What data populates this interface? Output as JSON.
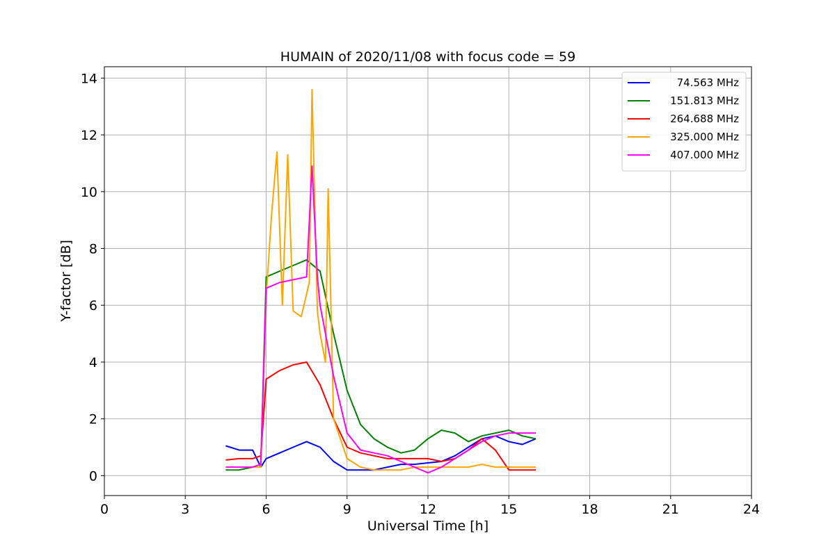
{
  "chart_data": {
    "type": "line",
    "title": "HUMAIN of 2020/11/08 with focus code = 59",
    "xlabel": "Universal Time [h]",
    "ylabel": "Y-factor [dB]",
    "xlim": [
      0,
      24
    ],
    "ylim": [
      -0.7,
      14.4
    ],
    "xticks": [
      0,
      3,
      6,
      9,
      12,
      15,
      18,
      21,
      24
    ],
    "yticks": [
      0,
      2,
      4,
      6,
      8,
      10,
      12,
      14
    ],
    "xtick_labels": [
      "0",
      "3",
      "6",
      "9",
      "12",
      "15",
      "18",
      "21",
      "24"
    ],
    "ytick_labels": [
      "0",
      "2",
      "4",
      "6",
      "8",
      "10",
      "12",
      "14"
    ],
    "grid": true,
    "legend_position": "top-right",
    "series": [
      {
        "name": "74.563 MHz",
        "color": "#0000ff",
        "x": [
          4.5,
          5.0,
          5.5,
          5.8,
          6.0,
          6.5,
          7.0,
          7.5,
          8.0,
          8.5,
          9.0,
          9.5,
          10.0,
          10.5,
          11.0,
          11.5,
          12.0,
          12.5,
          13.0,
          13.5,
          14.0,
          14.5,
          15.0,
          15.5,
          16.0
        ],
        "y": [
          1.05,
          0.9,
          0.9,
          0.3,
          0.6,
          0.8,
          1.0,
          1.2,
          1.0,
          0.5,
          0.2,
          0.2,
          0.2,
          0.3,
          0.4,
          0.4,
          0.45,
          0.5,
          0.7,
          1.0,
          1.3,
          1.4,
          1.2,
          1.1,
          1.3
        ]
      },
      {
        "name": "151.813 MHz",
        "color": "#008000",
        "x": [
          4.5,
          5.0,
          5.5,
          5.8,
          6.0,
          6.5,
          7.0,
          7.5,
          8.0,
          8.5,
          9.0,
          9.5,
          10.0,
          10.5,
          11.0,
          11.5,
          12.0,
          12.5,
          13.0,
          13.5,
          14.0,
          14.5,
          15.0,
          15.5,
          16.0
        ],
        "y": [
          0.2,
          0.2,
          0.3,
          0.4,
          7.0,
          7.2,
          7.4,
          7.6,
          7.2,
          5.0,
          3.0,
          1.8,
          1.3,
          1.0,
          0.8,
          0.9,
          1.3,
          1.6,
          1.5,
          1.2,
          1.4,
          1.5,
          1.6,
          1.4,
          1.3
        ]
      },
      {
        "name": "264.688 MHz",
        "color": "#ff0000",
        "x": [
          4.5,
          5.0,
          5.5,
          5.8,
          6.0,
          6.5,
          7.0,
          7.5,
          8.0,
          8.5,
          9.0,
          9.5,
          10.0,
          10.5,
          11.0,
          11.5,
          12.0,
          12.5,
          13.0,
          13.5,
          14.0,
          14.5,
          15.0,
          15.5,
          16.0
        ],
        "y": [
          0.55,
          0.6,
          0.6,
          0.7,
          3.4,
          3.7,
          3.9,
          4.0,
          3.2,
          2.0,
          1.0,
          0.8,
          0.7,
          0.6,
          0.6,
          0.6,
          0.6,
          0.5,
          0.6,
          0.9,
          1.3,
          0.9,
          0.2,
          0.2,
          0.2
        ]
      },
      {
        "name": "325.000 MHz",
        "color": "#ffa500",
        "x": [
          4.5,
          5.0,
          5.5,
          5.8,
          6.0,
          6.2,
          6.4,
          6.6,
          6.8,
          7.0,
          7.3,
          7.6,
          7.7,
          7.9,
          8.0,
          8.2,
          8.3,
          8.5,
          9.0,
          9.5,
          10.0,
          10.5,
          11.0,
          11.5,
          12.0,
          12.5,
          13.0,
          13.5,
          14.0,
          14.5,
          15.0,
          15.5,
          16.0
        ],
        "y": [
          0.3,
          0.3,
          0.3,
          0.3,
          6.3,
          9.2,
          11.4,
          6.0,
          11.3,
          5.8,
          5.6,
          6.8,
          13.6,
          5.8,
          5.0,
          4.0,
          10.1,
          2.0,
          0.6,
          0.3,
          0.2,
          0.2,
          0.2,
          0.3,
          0.3,
          0.3,
          0.3,
          0.3,
          0.4,
          0.3,
          0.3,
          0.3,
          0.3
        ]
      },
      {
        "name": "407.000 MHz",
        "color": "#ff00ff",
        "x": [
          4.5,
          5.0,
          5.5,
          5.8,
          6.0,
          6.5,
          7.0,
          7.5,
          7.7,
          7.9,
          8.0,
          8.5,
          9.0,
          9.5,
          10.0,
          10.5,
          11.0,
          11.5,
          12.0,
          12.5,
          13.0,
          13.5,
          14.0,
          14.5,
          15.0,
          15.5,
          16.0
        ],
        "y": [
          0.3,
          0.3,
          0.3,
          0.4,
          6.6,
          6.8,
          6.9,
          7.0,
          10.9,
          7.0,
          6.0,
          3.5,
          1.5,
          0.9,
          0.8,
          0.7,
          0.5,
          0.3,
          0.1,
          0.3,
          0.6,
          0.9,
          1.2,
          1.4,
          1.5,
          1.5,
          1.5
        ]
      }
    ]
  }
}
